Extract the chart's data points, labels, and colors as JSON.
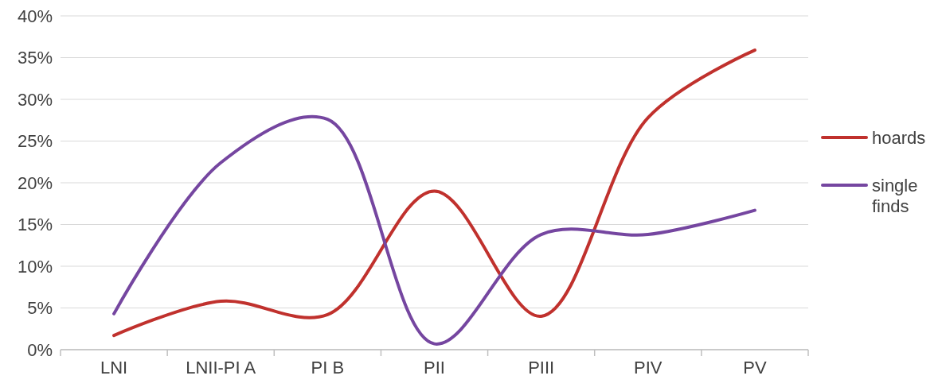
{
  "chart_data": {
    "type": "line",
    "categories": [
      "LNI",
      "LNII-PI A",
      "PI B",
      "PII",
      "PIII",
      "PIV",
      "PV"
    ],
    "series": [
      {
        "name": "hoards",
        "color": "#c0312d",
        "values": [
          1.7,
          5.8,
          4.2,
          19.0,
          4.0,
          27.8,
          35.9
        ]
      },
      {
        "name": "single finds",
        "color": "#7546a0",
        "values": [
          4.3,
          22.4,
          27.6,
          0.7,
          13.8,
          13.8,
          16.7
        ]
      }
    ],
    "ylim": [
      0,
      40
    ],
    "yticks": [
      {
        "value": 0,
        "label": "0%"
      },
      {
        "value": 5,
        "label": "5%"
      },
      {
        "value": 10,
        "label": "10%"
      },
      {
        "value": 15,
        "label": "15%"
      },
      {
        "value": 20,
        "label": "20%"
      },
      {
        "value": 25,
        "label": "25%"
      },
      {
        "value": 30,
        "label": "30%"
      },
      {
        "value": 35,
        "label": "35%"
      },
      {
        "value": 40,
        "label": "40%"
      }
    ],
    "grid": "y",
    "legend": "right",
    "marker": "none",
    "line_style": "solid"
  }
}
